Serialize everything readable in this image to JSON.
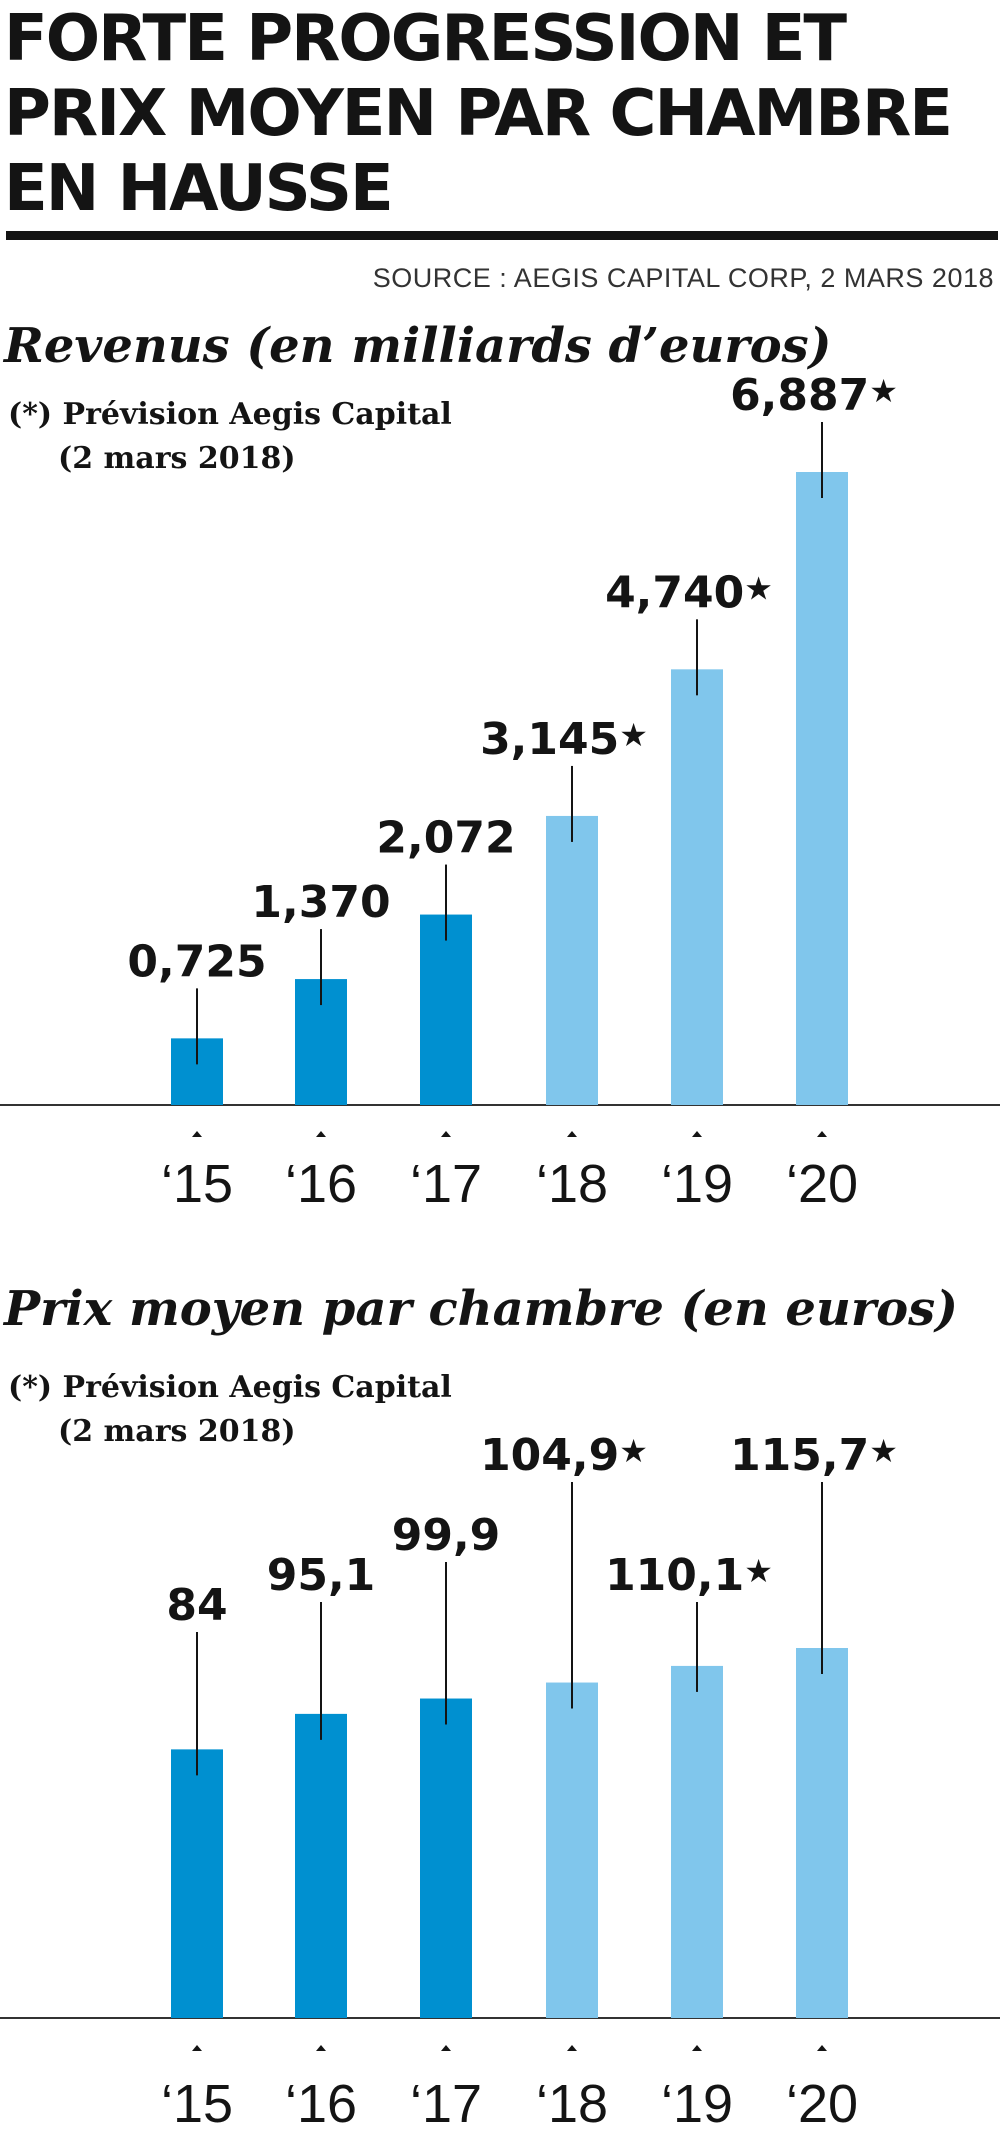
{
  "headline": {
    "lines": [
      "FORTE PROGRESSION ET",
      "PRIX MOYEN PAR CHAMBRE",
      "EN HAUSSE"
    ]
  },
  "source": "SOURCE : AEGIS CAPITAL CORP, 2 MARS 2018",
  "colors": {
    "actual": "#0090d0",
    "forecast": "#80c6ec",
    "text": "#141414",
    "axis": "#333333"
  },
  "chart_data": [
    {
      "type": "bar",
      "title": "Revenus (en milliards d’euros)",
      "note_lines": [
        "(*) Prévision Aegis Capital",
        "(2 mars 2018)"
      ],
      "categories": [
        "‘15",
        "‘16",
        "‘17",
        "‘18",
        "‘19",
        "‘20"
      ],
      "values": [
        0.725,
        1.37,
        2.072,
        3.145,
        4.74,
        6.887
      ],
      "value_labels": [
        "0,725",
        "1,370",
        "2,072",
        "3,145",
        "4,740",
        "6,887"
      ],
      "forecast": [
        false,
        false,
        false,
        true,
        true,
        true
      ],
      "ylim": [
        0,
        6.887
      ],
      "xlabel": "",
      "ylabel": ""
    },
    {
      "type": "bar",
      "title": "Prix moyen par chambre (en euros)",
      "note_lines": [
        "(*) Prévision Aegis Capital",
        "(2 mars 2018)"
      ],
      "categories": [
        "‘15",
        "‘16",
        "‘17",
        "‘18",
        "‘19",
        "‘20"
      ],
      "values": [
        84,
        95.1,
        99.9,
        104.9,
        110.1,
        115.7
      ],
      "value_labels": [
        "84",
        "95,1",
        "99,9",
        "104,9",
        "110,1",
        "115,7"
      ],
      "forecast": [
        false,
        false,
        false,
        true,
        true,
        true
      ],
      "ylim": [
        0,
        115.7
      ],
      "xlabel": "",
      "ylabel": ""
    }
  ]
}
